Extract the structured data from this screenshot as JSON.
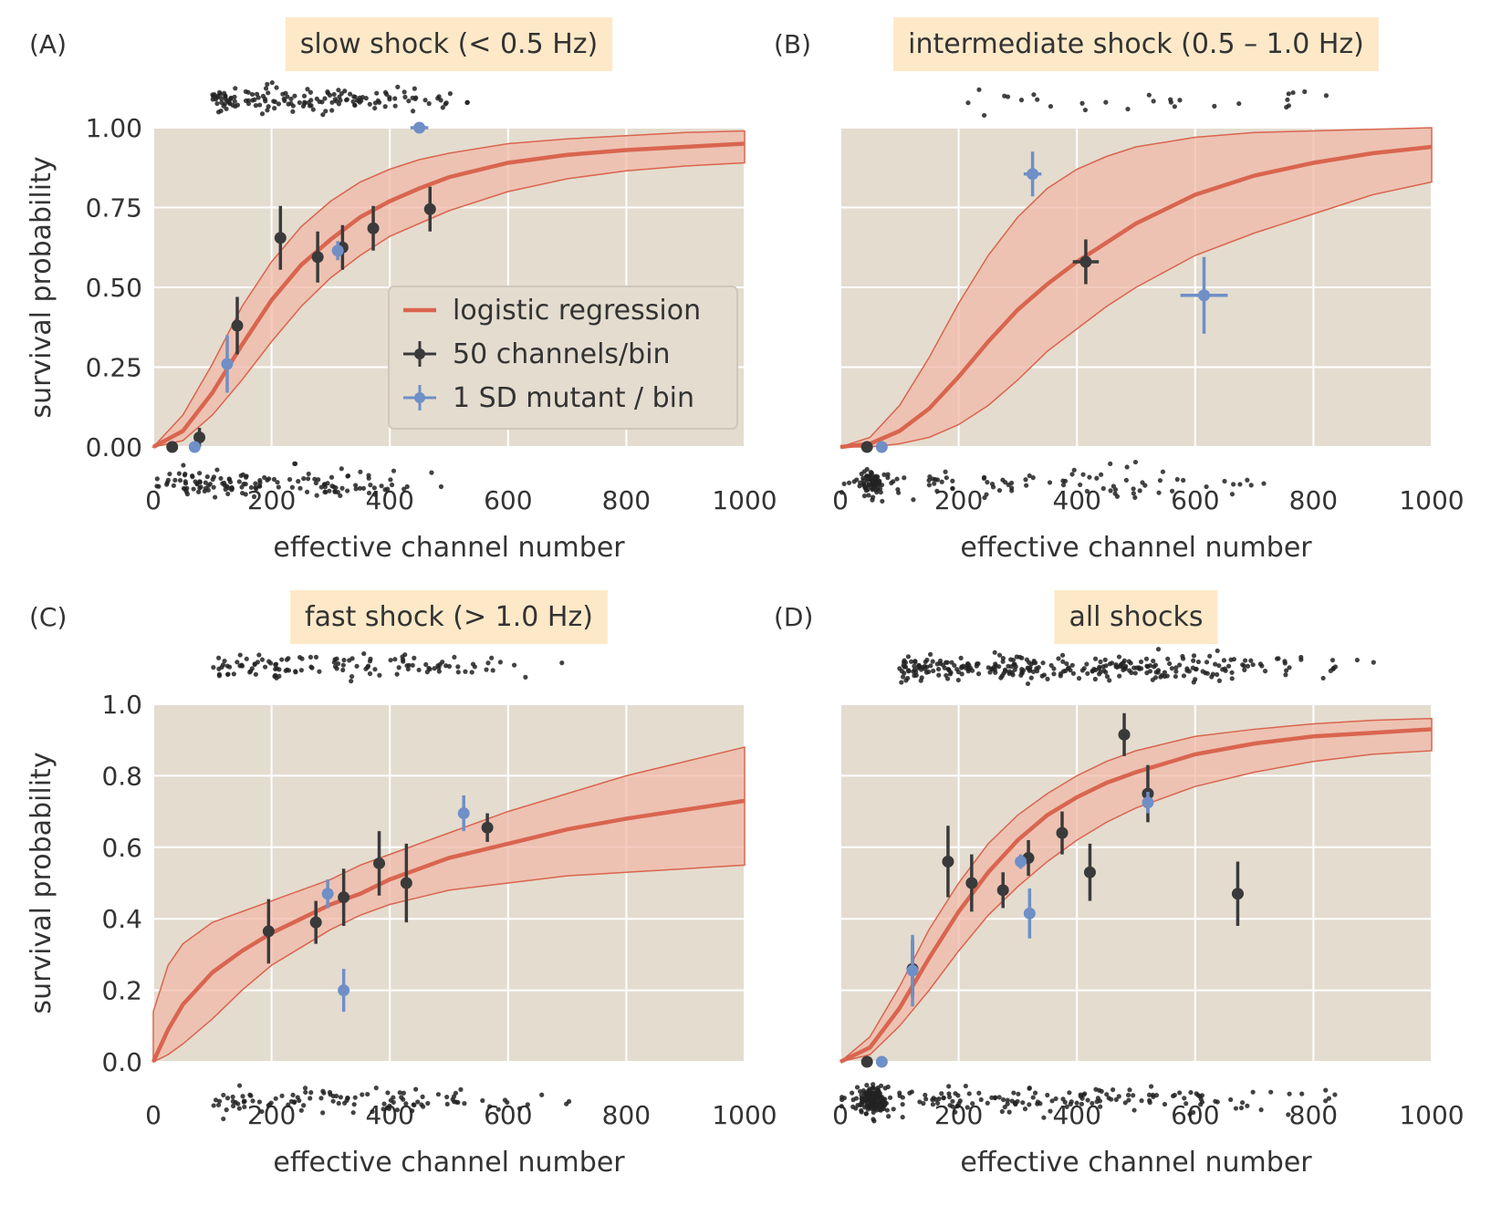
{
  "figure": {
    "xlabel": "effective channel number",
    "ylabel": "survival probability",
    "legend": {
      "entries": [
        "logistic regression",
        "50 channels/bin",
        "1 SD mutant / bin"
      ],
      "colors": [
        "#d9654f",
        "#3a3a3a",
        "#6f8fc7"
      ]
    },
    "colors": {
      "bg": "#e4dccf",
      "fit": "#d9654f",
      "band": "#f0b9a8",
      "binned": "#3a3a3a",
      "mutant": "#6f8fc7",
      "titlebox": "#fde9c8"
    }
  },
  "chart_data": [
    {
      "type": "scatter",
      "panel": "(A)",
      "title": "slow shock (< 0.5 Hz)",
      "xlabel": "effective channel number",
      "ylabel": "survival probability",
      "xlim": [
        0,
        1000
      ],
      "ylim": [
        0,
        1.0
      ],
      "xticks": [
        "0",
        "200",
        "400",
        "600",
        "800",
        "1000"
      ],
      "yticks": [
        "0.00",
        "0.25",
        "0.50",
        "0.75",
        "1.00"
      ],
      "grid": true,
      "legend_position": "center-right",
      "fit_curve": {
        "x": [
          0,
          50,
          100,
          150,
          200,
          250,
          300,
          350,
          400,
          450,
          500,
          600,
          700,
          800,
          900,
          1000
        ],
        "y": [
          0.0,
          0.05,
          0.17,
          0.32,
          0.46,
          0.57,
          0.65,
          0.72,
          0.77,
          0.81,
          0.845,
          0.89,
          0.915,
          0.93,
          0.94,
          0.95
        ]
      },
      "fit_band_upper": {
        "x": [
          0,
          50,
          100,
          150,
          200,
          250,
          300,
          350,
          400,
          450,
          500,
          600,
          700,
          800,
          900,
          1000
        ],
        "y": [
          0.0,
          0.1,
          0.26,
          0.44,
          0.58,
          0.69,
          0.77,
          0.83,
          0.87,
          0.9,
          0.92,
          0.95,
          0.965,
          0.975,
          0.985,
          0.99
        ]
      },
      "fit_band_lower": {
        "x": [
          0,
          50,
          100,
          150,
          200,
          250,
          300,
          350,
          400,
          450,
          500,
          600,
          700,
          800,
          900,
          1000
        ],
        "y": [
          0.0,
          0.02,
          0.1,
          0.21,
          0.33,
          0.44,
          0.53,
          0.6,
          0.66,
          0.7,
          0.74,
          0.8,
          0.84,
          0.865,
          0.88,
          0.89
        ]
      },
      "binned_50": [
        {
          "x": 32,
          "y": 0.0,
          "yerr": 0.0,
          "xerr": 0
        },
        {
          "x": 78,
          "y": 0.03,
          "yerr": 0.03,
          "xerr": 0
        },
        {
          "x": 142,
          "y": 0.38,
          "yerr": 0.09,
          "xerr": 0
        },
        {
          "x": 215,
          "y": 0.655,
          "yerr": 0.1,
          "xerr": 0
        },
        {
          "x": 278,
          "y": 0.595,
          "yerr": 0.08,
          "xerr": 0
        },
        {
          "x": 320,
          "y": 0.625,
          "yerr": 0.07,
          "xerr": 0
        },
        {
          "x": 372,
          "y": 0.685,
          "yerr": 0.07,
          "xerr": 0
        },
        {
          "x": 468,
          "y": 0.745,
          "yerr": 0.07,
          "xerr": 0
        }
      ],
      "mutant_1sd": [
        {
          "x": 70,
          "y": 0.0,
          "yerr": 0.0,
          "xerr": 0
        },
        {
          "x": 125,
          "y": 0.26,
          "yerr": 0.09,
          "xerr": 0
        },
        {
          "x": 312,
          "y": 0.615,
          "yerr": 0.03,
          "xerr": 0
        },
        {
          "x": 450,
          "y": 1.0,
          "yerr": 0.0,
          "xerr": 15
        }
      ],
      "rug_top_range": [
        100,
        550
      ],
      "rug_bottom_range": [
        0,
        520
      ],
      "rug_top_count": 150,
      "rug_bottom_count": 140
    },
    {
      "type": "scatter",
      "panel": "(B)",
      "title": "intermediate shock (0.5 – 1.0 Hz)",
      "xlabel": "effective channel number",
      "ylabel": "",
      "xlim": [
        0,
        1000
      ],
      "ylim": [
        0,
        1.0
      ],
      "xticks": [
        "0",
        "200",
        "400",
        "600",
        "800",
        "1000"
      ],
      "yticks": [],
      "grid": true,
      "fit_curve": {
        "x": [
          0,
          50,
          100,
          150,
          200,
          250,
          300,
          350,
          400,
          450,
          500,
          600,
          700,
          800,
          900,
          1000
        ],
        "y": [
          0.0,
          0.01,
          0.05,
          0.12,
          0.22,
          0.33,
          0.43,
          0.51,
          0.58,
          0.64,
          0.7,
          0.79,
          0.85,
          0.89,
          0.92,
          0.94
        ]
      },
      "fit_band_upper": {
        "x": [
          0,
          50,
          100,
          150,
          200,
          250,
          300,
          350,
          400,
          450,
          500,
          600,
          700,
          800,
          900,
          1000
        ],
        "y": [
          0.0,
          0.03,
          0.13,
          0.28,
          0.45,
          0.6,
          0.72,
          0.81,
          0.87,
          0.91,
          0.94,
          0.97,
          0.985,
          0.99,
          0.995,
          1.0
        ]
      },
      "fit_band_lower": {
        "x": [
          0,
          50,
          100,
          150,
          200,
          250,
          300,
          350,
          400,
          450,
          500,
          600,
          700,
          800,
          900,
          1000
        ],
        "y": [
          0.0,
          0.0,
          0.01,
          0.03,
          0.07,
          0.13,
          0.21,
          0.3,
          0.37,
          0.44,
          0.5,
          0.6,
          0.67,
          0.73,
          0.79,
          0.83
        ]
      },
      "binned_50": [
        {
          "x": 45,
          "y": 0.0,
          "yerr": 0.0,
          "xerr": 0
        },
        {
          "x": 415,
          "y": 0.58,
          "yerr": 0.07,
          "xerr": 22
        }
      ],
      "mutant_1sd": [
        {
          "x": 70,
          "y": 0.0,
          "yerr": 0.0,
          "xerr": 0
        },
        {
          "x": 325,
          "y": 0.855,
          "yerr": 0.07,
          "xerr": 15
        },
        {
          "x": 615,
          "y": 0.475,
          "yerr": 0.12,
          "xerr": 40
        }
      ],
      "rug_top_range": [
        200,
        930
      ],
      "rug_bottom_range": [
        0,
        900
      ],
      "rug_top_count": 28,
      "rug_bottom_count": 160
    },
    {
      "type": "scatter",
      "panel": "(C)",
      "title": "fast shock (> 1.0 Hz)",
      "xlabel": "effective channel number",
      "ylabel": "survival probability",
      "xlim": [
        0,
        1000
      ],
      "ylim": [
        0,
        1.0
      ],
      "xticks": [
        "0",
        "200",
        "400",
        "600",
        "800",
        "1000"
      ],
      "yticks": [
        "0.0",
        "0.2",
        "0.4",
        "0.6",
        "0.8",
        "1.0"
      ],
      "grid": true,
      "fit_curve": {
        "x": [
          0,
          25,
          50,
          100,
          150,
          200,
          250,
          300,
          350,
          400,
          450,
          500,
          600,
          700,
          800,
          900,
          1000
        ],
        "y": [
          0.0,
          0.09,
          0.16,
          0.25,
          0.31,
          0.36,
          0.4,
          0.44,
          0.47,
          0.51,
          0.54,
          0.57,
          0.61,
          0.65,
          0.68,
          0.705,
          0.73
        ]
      },
      "fit_band_upper": {
        "x": [
          0,
          25,
          50,
          100,
          150,
          200,
          250,
          300,
          350,
          400,
          450,
          500,
          600,
          700,
          800,
          900,
          1000
        ],
        "y": [
          0.14,
          0.27,
          0.33,
          0.39,
          0.42,
          0.45,
          0.48,
          0.51,
          0.55,
          0.58,
          0.61,
          0.64,
          0.7,
          0.75,
          0.8,
          0.84,
          0.88
        ]
      },
      "fit_band_lower": {
        "x": [
          0,
          25,
          50,
          100,
          150,
          200,
          250,
          300,
          350,
          400,
          450,
          500,
          600,
          700,
          800,
          900,
          1000
        ],
        "y": [
          0.0,
          0.02,
          0.05,
          0.12,
          0.2,
          0.27,
          0.32,
          0.37,
          0.41,
          0.44,
          0.46,
          0.48,
          0.5,
          0.52,
          0.53,
          0.54,
          0.55
        ]
      },
      "binned_50": [
        {
          "x": 195,
          "y": 0.365,
          "yerr": 0.09,
          "xerr": 0
        },
        {
          "x": 275,
          "y": 0.39,
          "yerr": 0.06,
          "xerr": 0
        },
        {
          "x": 322,
          "y": 0.46,
          "yerr": 0.08,
          "xerr": 0
        },
        {
          "x": 382,
          "y": 0.555,
          "yerr": 0.09,
          "xerr": 0
        },
        {
          "x": 428,
          "y": 0.5,
          "yerr": 0.11,
          "xerr": 0
        },
        {
          "x": 565,
          "y": 0.655,
          "yerr": 0.04,
          "xerr": 0
        }
      ],
      "mutant_1sd": [
        {
          "x": 295,
          "y": 0.47,
          "yerr": 0.04,
          "xerr": 0
        },
        {
          "x": 322,
          "y": 0.2,
          "yerr": 0.06,
          "xerr": 0
        },
        {
          "x": 525,
          "y": 0.695,
          "yerr": 0.05,
          "xerr": 0
        }
      ],
      "rug_top_range": [
        100,
        740
      ],
      "rug_bottom_range": [
        100,
        740
      ],
      "rug_top_count": 120,
      "rug_bottom_count": 110
    },
    {
      "type": "scatter",
      "panel": "(D)",
      "title": "all shocks",
      "xlabel": "effective channel number",
      "ylabel": "",
      "xlim": [
        0,
        1000
      ],
      "ylim": [
        0,
        1.0
      ],
      "xticks": [
        "0",
        "200",
        "400",
        "600",
        "800",
        "1000"
      ],
      "yticks": [],
      "grid": true,
      "fit_curve": {
        "x": [
          0,
          50,
          100,
          150,
          200,
          250,
          300,
          350,
          400,
          450,
          500,
          600,
          700,
          800,
          900,
          1000
        ],
        "y": [
          0.0,
          0.04,
          0.15,
          0.29,
          0.42,
          0.53,
          0.62,
          0.69,
          0.74,
          0.78,
          0.81,
          0.86,
          0.89,
          0.91,
          0.92,
          0.93
        ]
      },
      "fit_band_upper": {
        "x": [
          0,
          50,
          100,
          150,
          200,
          250,
          300,
          350,
          400,
          450,
          500,
          600,
          700,
          800,
          900,
          1000
        ],
        "y": [
          0.0,
          0.07,
          0.21,
          0.37,
          0.5,
          0.61,
          0.69,
          0.75,
          0.8,
          0.84,
          0.87,
          0.91,
          0.93,
          0.945,
          0.955,
          0.96
        ]
      },
      "fit_band_lower": {
        "x": [
          0,
          50,
          100,
          150,
          200,
          250,
          300,
          350,
          400,
          450,
          500,
          600,
          700,
          800,
          900,
          1000
        ],
        "y": [
          0.0,
          0.02,
          0.1,
          0.2,
          0.31,
          0.41,
          0.49,
          0.56,
          0.62,
          0.67,
          0.71,
          0.77,
          0.81,
          0.84,
          0.86,
          0.87
        ]
      },
      "binned_50": [
        {
          "x": 45,
          "y": 0.0,
          "yerr": 0.0,
          "xerr": 0
        },
        {
          "x": 122,
          "y": 0.26,
          "yerr": 0.08,
          "xerr": 0
        },
        {
          "x": 182,
          "y": 0.56,
          "yerr": 0.1,
          "xerr": 0
        },
        {
          "x": 222,
          "y": 0.5,
          "yerr": 0.08,
          "xerr": 0
        },
        {
          "x": 275,
          "y": 0.48,
          "yerr": 0.05,
          "xerr": 0
        },
        {
          "x": 318,
          "y": 0.57,
          "yerr": 0.05,
          "xerr": 0
        },
        {
          "x": 375,
          "y": 0.64,
          "yerr": 0.06,
          "xerr": 0
        },
        {
          "x": 422,
          "y": 0.53,
          "yerr": 0.08,
          "xerr": 0
        },
        {
          "x": 480,
          "y": 0.915,
          "yerr": 0.06,
          "xerr": 0
        },
        {
          "x": 520,
          "y": 0.75,
          "yerr": 0.08,
          "xerr": 0
        },
        {
          "x": 672,
          "y": 0.47,
          "yerr": 0.09,
          "xerr": 10
        }
      ],
      "mutant_1sd": [
        {
          "x": 70,
          "y": 0.0,
          "yerr": 0.0,
          "xerr": 0
        },
        {
          "x": 122,
          "y": 0.255,
          "yerr": 0.1,
          "xerr": 0
        },
        {
          "x": 305,
          "y": 0.56,
          "yerr": 0.02,
          "xerr": 0
        },
        {
          "x": 320,
          "y": 0.415,
          "yerr": 0.07,
          "xerr": 0
        },
        {
          "x": 520,
          "y": 0.725,
          "yerr": 0.03,
          "xerr": 0
        }
      ],
      "rug_top_range": [
        100,
        930
      ],
      "rug_bottom_range": [
        0,
        880
      ],
      "rug_top_count": 300,
      "rug_bottom_count": 330
    }
  ]
}
